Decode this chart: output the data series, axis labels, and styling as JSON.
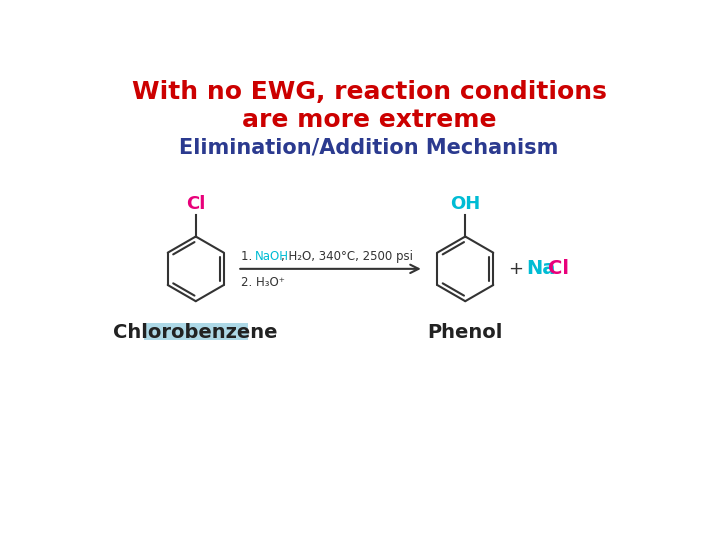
{
  "title_line1": "With no EWG, reaction conditions",
  "title_line2": "are more extreme",
  "subtitle": "Elimination/Addition Mechanism",
  "title_color": "#cc0000",
  "subtitle_color": "#2b3a8f",
  "bg_color": "#ffffff",
  "title_fontsize": 18,
  "subtitle_fontsize": 15,
  "chlorobenzene_label": "Chlorobenzene",
  "phenol_label": "Phenol",
  "label_color": "#222222",
  "label_fontsize": 14,
  "cl_color": "#e8007a",
  "oh_color": "#00bcd4",
  "naoh_color": "#00bcd4",
  "nacl_color": "#e8007a",
  "nacl_na_color": "#00bcd4",
  "arrow_color": "#333333",
  "reagent_color": "#333333",
  "highlight_color": "#add8e6",
  "ring_color": "#333333"
}
